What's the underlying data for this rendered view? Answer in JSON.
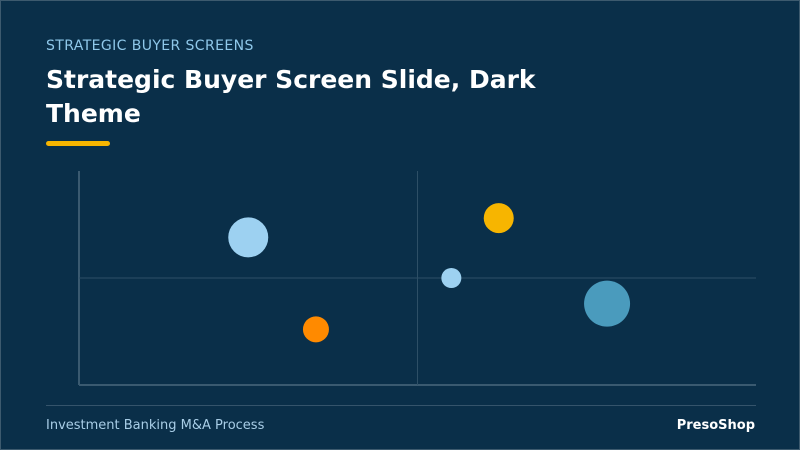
{
  "slide": {
    "eyebrow": "STRATEGIC BUYER SCREENS",
    "title_line1": "Strategic Buyer Screen Slide, Dark",
    "title_line2": "Theme",
    "accent_color": "#f7b500",
    "footer_left": "Investment Banking M&A Process",
    "footer_right": "PresoShop"
  },
  "chart_data": {
    "type": "scatter",
    "title": "",
    "xlabel": "",
    "ylabel": "",
    "xlim": [
      0,
      100
    ],
    "ylim": [
      0,
      100
    ],
    "grid": false,
    "quadrant_lines": {
      "x": 50,
      "y": 50
    },
    "points": [
      {
        "x": 25,
        "y": 69,
        "size": 20,
        "color": "#9dd1f1"
      },
      {
        "x": 35,
        "y": 26,
        "size": 13,
        "color": "#ff8a00"
      },
      {
        "x": 55,
        "y": 50,
        "size": 10,
        "color": "#9dd1f1"
      },
      {
        "x": 62,
        "y": 78,
        "size": 15,
        "color": "#f7b500"
      },
      {
        "x": 78,
        "y": 38,
        "size": 23,
        "color": "#4a9bbd"
      }
    ]
  }
}
